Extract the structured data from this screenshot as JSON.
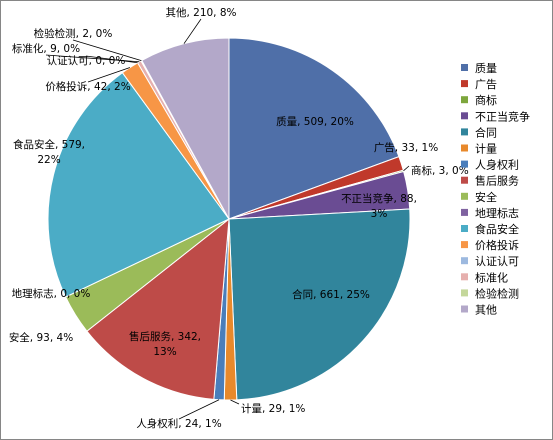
{
  "chart_data": {
    "type": "pie",
    "title": "",
    "legend_position": "right",
    "slices": [
      {
        "name": "质量",
        "value": 509,
        "pct": "20%",
        "color": "#4F6FA8"
      },
      {
        "name": "广告",
        "value": 33,
        "pct": "1%",
        "color": "#C0392B"
      },
      {
        "name": "商标",
        "value": 3,
        "pct": "0%",
        "color": "#7DA63C"
      },
      {
        "name": "不正当竞争",
        "value": 88,
        "pct": "3%",
        "color": "#6A4C93"
      },
      {
        "name": "合同",
        "value": 661,
        "pct": "25%",
        "color": "#31859C"
      },
      {
        "name": "计量",
        "value": 29,
        "pct": "1%",
        "color": "#E8892B"
      },
      {
        "name": "人身权利",
        "value": 24,
        "pct": "1%",
        "color": "#4A7EBB"
      },
      {
        "name": "售后服务",
        "value": 342,
        "pct": "13%",
        "color": "#BE4B48"
      },
      {
        "name": "安全",
        "value": 93,
        "pct": "4%",
        "color": "#9BBB59"
      },
      {
        "name": "地理标志",
        "value": 0,
        "pct": "0%",
        "color": "#7F62A0"
      },
      {
        "name": "食品安全",
        "value": 579,
        "pct": "22%",
        "color": "#4BACC6"
      },
      {
        "name": "价格投诉",
        "value": 42,
        "pct": "2%",
        "color": "#F79646"
      },
      {
        "name": "认证认可",
        "value": 0,
        "pct": "0%",
        "color": "#9DB9DF"
      },
      {
        "name": "标准化",
        "value": 9,
        "pct": "0%",
        "color": "#E6B0AE"
      },
      {
        "name": "检验检测",
        "value": 2,
        "pct": "0%",
        "color": "#C4D79B"
      },
      {
        "name": "其他",
        "value": 210,
        "pct": "8%",
        "color": "#B3A8C9"
      }
    ],
    "data_labels": [
      {
        "slice": 0,
        "lines": [
          "质量, 509, 20%"
        ]
      },
      {
        "slice": 1,
        "lines": [
          "广告, 33, 1%"
        ]
      },
      {
        "slice": 2,
        "lines": [
          "商标, 3, 0%"
        ]
      },
      {
        "slice": 3,
        "lines": [
          "不正当竞争, 88,",
          "3%"
        ]
      },
      {
        "slice": 4,
        "lines": [
          "合同, 661, 25%"
        ]
      },
      {
        "slice": 5,
        "lines": [
          "计量, 29, 1%"
        ]
      },
      {
        "slice": 6,
        "lines": [
          "人身权利, 24, 1%"
        ]
      },
      {
        "slice": 7,
        "lines": [
          "售后服务, 342,",
          "13%"
        ]
      },
      {
        "slice": 8,
        "lines": [
          "安全, 93, 4%"
        ]
      },
      {
        "slice": 9,
        "lines": [
          "地理标志, 0, 0%"
        ]
      },
      {
        "slice": 10,
        "lines": [
          "食品安全, 579,",
          "22%"
        ]
      },
      {
        "slice": 11,
        "lines": [
          "价格投诉, 42, 2%"
        ]
      },
      {
        "slice": 12,
        "lines": [
          "认证认可, 0, 0%"
        ]
      },
      {
        "slice": 13,
        "lines": [
          "标准化, 9, 0%"
        ]
      },
      {
        "slice": 14,
        "lines": [
          "检验检测, 2, 0%"
        ]
      },
      {
        "slice": 15,
        "lines": [
          "其他, 210, 8%"
        ]
      }
    ]
  }
}
